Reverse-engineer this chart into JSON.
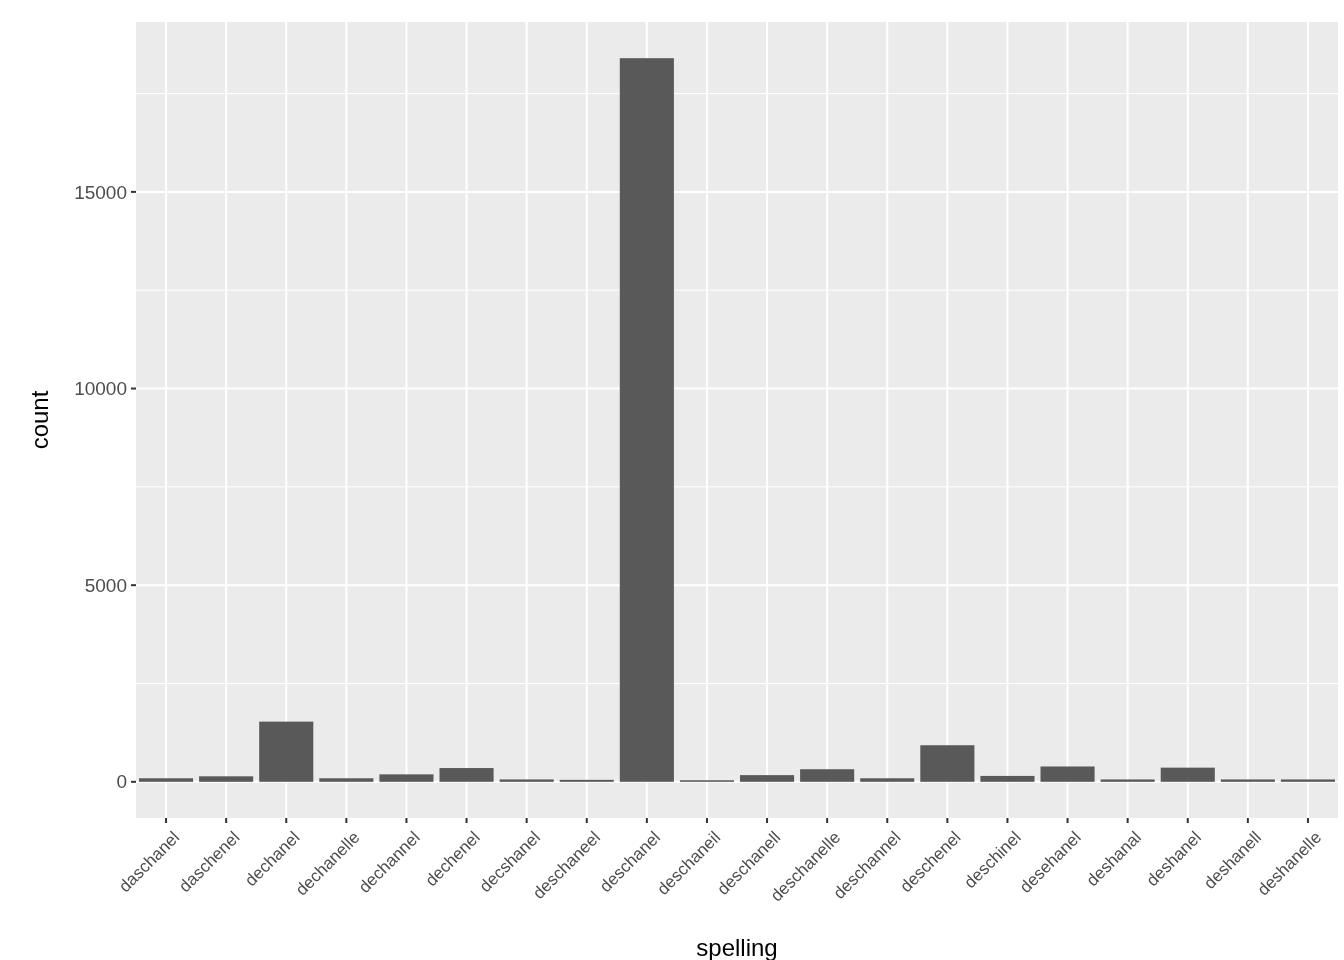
{
  "chart_data": {
    "type": "bar",
    "xlabel": "spelling",
    "ylabel": "count",
    "categories": [
      "daschanel",
      "daschenel",
      "dechanel",
      "dechanelle",
      "dechannel",
      "dechenel",
      "decshanel",
      "deschaneel",
      "deschanel",
      "deschaneil",
      "deschanell",
      "deschanelle",
      "deschannel",
      "deschenel",
      "deschinel",
      "desehanel",
      "deshanal",
      "deshanel",
      "deshanell",
      "deshanelle"
    ],
    "values": [
      90,
      140,
      1530,
      90,
      190,
      350,
      60,
      50,
      18400,
      40,
      170,
      320,
      90,
      930,
      150,
      390,
      60,
      360,
      60,
      60
    ],
    "color": "#595959",
    "ylim": [
      -920,
      19320
    ],
    "yticks": [
      0,
      5000,
      10000,
      15000
    ],
    "grid": true
  }
}
